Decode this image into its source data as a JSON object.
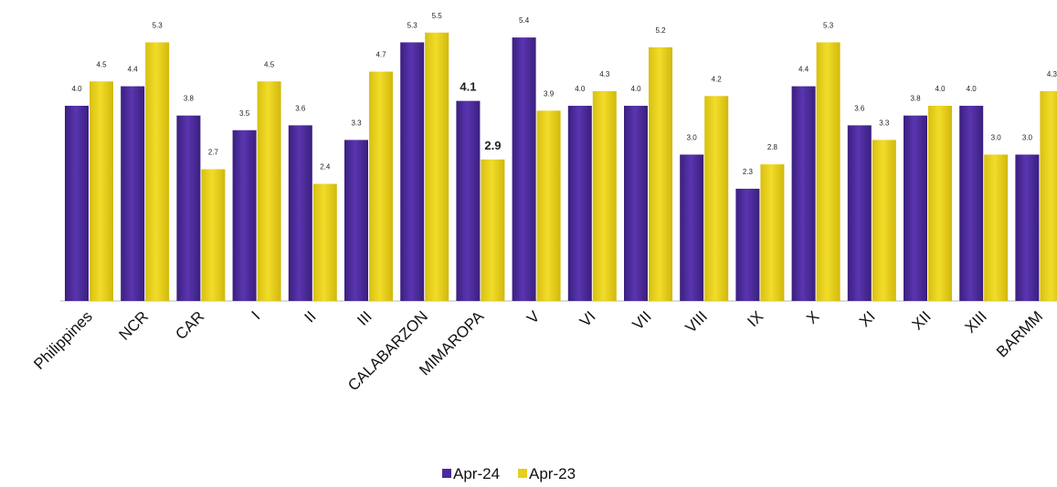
{
  "chart_data": {
    "type": "bar",
    "categories": [
      "Philippines",
      "NCR",
      "CAR",
      "I",
      "II",
      "III",
      "CALABARZON",
      "MIMAROPA",
      "V",
      "VI",
      "VII",
      "VIII",
      "IX",
      "X",
      "XI",
      "XII",
      "XIII",
      "BARMM"
    ],
    "series": [
      {
        "name": "Apr-24",
        "color": "#4b2a9a",
        "values": [
          4.0,
          4.4,
          3.8,
          3.5,
          3.6,
          3.3,
          5.3,
          4.1,
          5.4,
          4.0,
          4.0,
          3.0,
          2.3,
          4.4,
          3.6,
          3.8,
          4.0,
          3.0
        ],
        "labels": [
          "4.0",
          "4.4",
          "3.8",
          "3.5",
          "3.6",
          "3.3",
          "5.3",
          "4.1",
          "5.4",
          "4.0",
          "4.0",
          "3.0",
          "2.3",
          "4.4",
          "3.6",
          "3.8",
          "4.0",
          "3.0"
        ]
      },
      {
        "name": "Apr-23",
        "color": "#e6cf1e",
        "values": [
          4.5,
          5.3,
          2.7,
          4.5,
          2.4,
          4.7,
          5.5,
          2.9,
          3.9,
          4.3,
          5.2,
          4.2,
          2.8,
          5.3,
          3.3,
          4.0,
          3.0,
          4.3
        ],
        "labels": [
          "4.5",
          "5.3",
          "2.7",
          "4.5",
          "2.4",
          "4.7",
          "5.5",
          "2.9",
          "3.9",
          "4.3",
          "5.2",
          "4.2",
          "2.8",
          "5.3",
          "3.3",
          "4.0",
          "3.0",
          "4.3"
        ]
      }
    ],
    "emphasized_category": "MIMAROPA",
    "title": "",
    "xlabel": "",
    "ylabel": "",
    "ylim": [
      0,
      6
    ],
    "grid": false,
    "legend_position": "bottom"
  }
}
